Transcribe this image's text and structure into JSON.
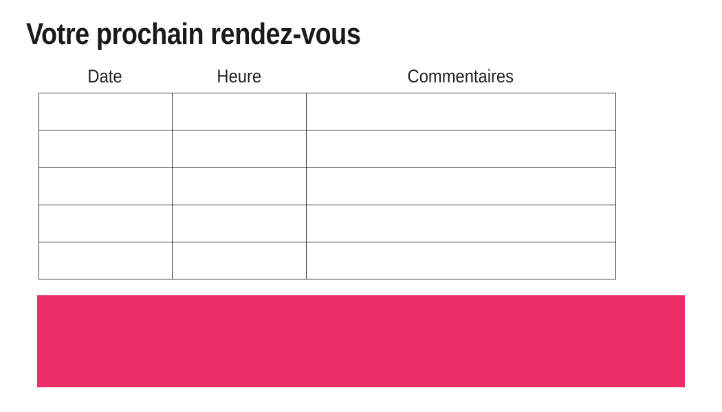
{
  "title": "Votre prochain rendez-vous",
  "table": {
    "columns": [
      "Date",
      "Heure",
      "Commentaires"
    ],
    "row_count": 5,
    "cells": [
      [
        "",
        "",
        ""
      ],
      [
        "",
        "",
        ""
      ],
      [
        "",
        "",
        ""
      ],
      [
        "",
        "",
        ""
      ],
      [
        "",
        "",
        ""
      ]
    ]
  },
  "banner": {
    "label": ""
  },
  "colors": {
    "accent": "#ED2D67",
    "text": "#1A1A1A",
    "table_border": "#3A3A3A",
    "background": "#FFFFFF"
  }
}
